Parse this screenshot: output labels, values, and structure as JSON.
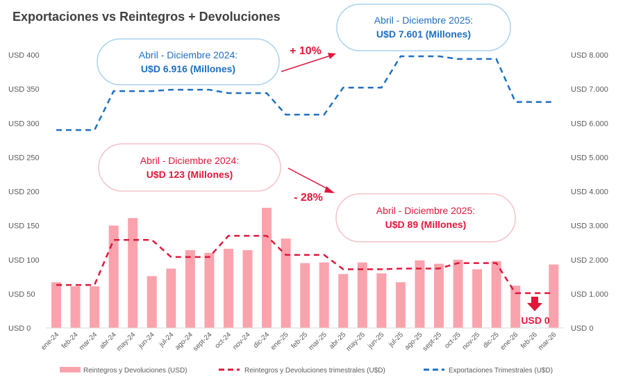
{
  "chart_data": {
    "type": "bar",
    "title": "Exportaciones vs Reintegros + Devoluciones",
    "categories": [
      "ene-24",
      "feb-24",
      "mar-24",
      "abr-24",
      "may-24",
      "jun-24",
      "jul-24",
      "ago-24",
      "sept-24",
      "oct-24",
      "nov-24",
      "dic-24",
      "ene-25",
      "feb-25",
      "mar-25",
      "abr-25",
      "may-25",
      "jun-25",
      "jul-25",
      "ago-25",
      "sept-25",
      "oct-25",
      "nov-25",
      "dic-25",
      "ene-26",
      "feb-26",
      "mar-26"
    ],
    "y_left": {
      "range": [
        0,
        400
      ],
      "ticks": [
        "USD 0",
        "USD 50",
        "USD 100",
        "USD 150",
        "USD 200",
        "USD 250",
        "USD 300",
        "USD 350",
        "USD 400"
      ]
    },
    "y_right": {
      "range": [
        0,
        8000
      ],
      "ticks": [
        "USD 0",
        "USD 1.000",
        "USD 2.000",
        "USD 3.000",
        "USD 4.000",
        "USD 5.000",
        "USD 6.000",
        "USD 7.000",
        "USD 8.000"
      ]
    },
    "series": [
      {
        "name": "Reintegros y Devoluciones (USD)",
        "kind": "bar",
        "axis": "left",
        "color": "#fba3ad",
        "values": [
          67,
          61,
          61,
          150,
          161,
          76,
          87,
          114,
          110,
          116,
          114,
          176,
          131,
          95,
          96,
          79,
          96,
          80,
          67,
          99,
          94,
          100,
          86,
          98,
          62,
          0,
          93
        ]
      },
      {
        "name": "Reintegros y Devoluciones trimestrales (U$D)",
        "kind": "dashed-line",
        "axis": "left",
        "color": "#e0173a",
        "values": [
          63,
          63,
          63,
          129,
          129,
          129,
          104,
          104,
          104,
          135,
          135,
          135,
          107,
          107,
          107,
          86,
          86,
          86,
          87,
          87,
          87,
          95,
          95,
          95,
          51,
          51,
          51
        ]
      },
      {
        "name": "Exportaciones Trimestrales (U$D)",
        "kind": "dashed-line",
        "axis": "right",
        "color": "#1f6fc0",
        "values": [
          5800,
          5800,
          5800,
          6940,
          6940,
          6940,
          6980,
          6980,
          6980,
          6880,
          6880,
          6880,
          6250,
          6250,
          6250,
          7040,
          7040,
          7040,
          7960,
          7960,
          7960,
          7880,
          7880,
          7880,
          6620,
          6620,
          6620
        ]
      }
    ],
    "legend_position": "bottom",
    "grid": false,
    "annotations": {
      "exp_2024": {
        "line1": "Abril - Diciembre 2024:",
        "line2": "U$D 6.916 (Millones)"
      },
      "exp_2025": {
        "line1": "Abril - Diciembre 2025:",
        "line2": "U$D 7.601 (Millones)"
      },
      "exp_change": "+ 10%",
      "rei_2024": {
        "line1": "Abril - Diciembre 2024:",
        "line2": "U$D 123 (Millones)"
      },
      "rei_2025": {
        "line1": "Abril - Diciembre 2025:",
        "line2": "U$D 89 (Millones)"
      },
      "rei_change": "- 28%",
      "zero_label": "USD 0"
    }
  }
}
